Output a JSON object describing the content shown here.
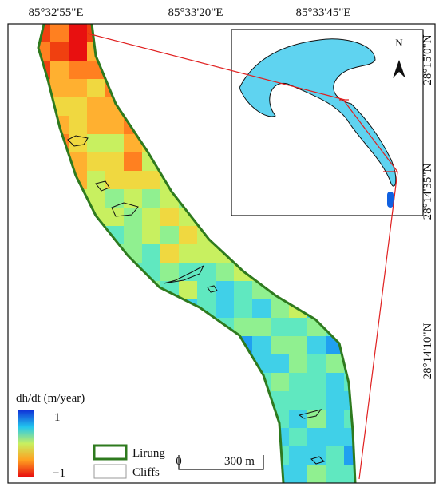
{
  "map": {
    "top_labels": [
      "85°32'55\"E",
      "85°33'20\"E",
      "85°33'45\"E"
    ],
    "right_labels": [
      "28°15'0\"N",
      "28°14'35\"N",
      "28°14'10\"N"
    ],
    "legend": {
      "title": "dh/dt (m/year)",
      "max": "1",
      "min": "−1",
      "items": [
        "Lirung",
        "Cliffs"
      ]
    },
    "scale_bar": {
      "start": "0",
      "end": "300 m"
    },
    "north": "N"
  }
}
